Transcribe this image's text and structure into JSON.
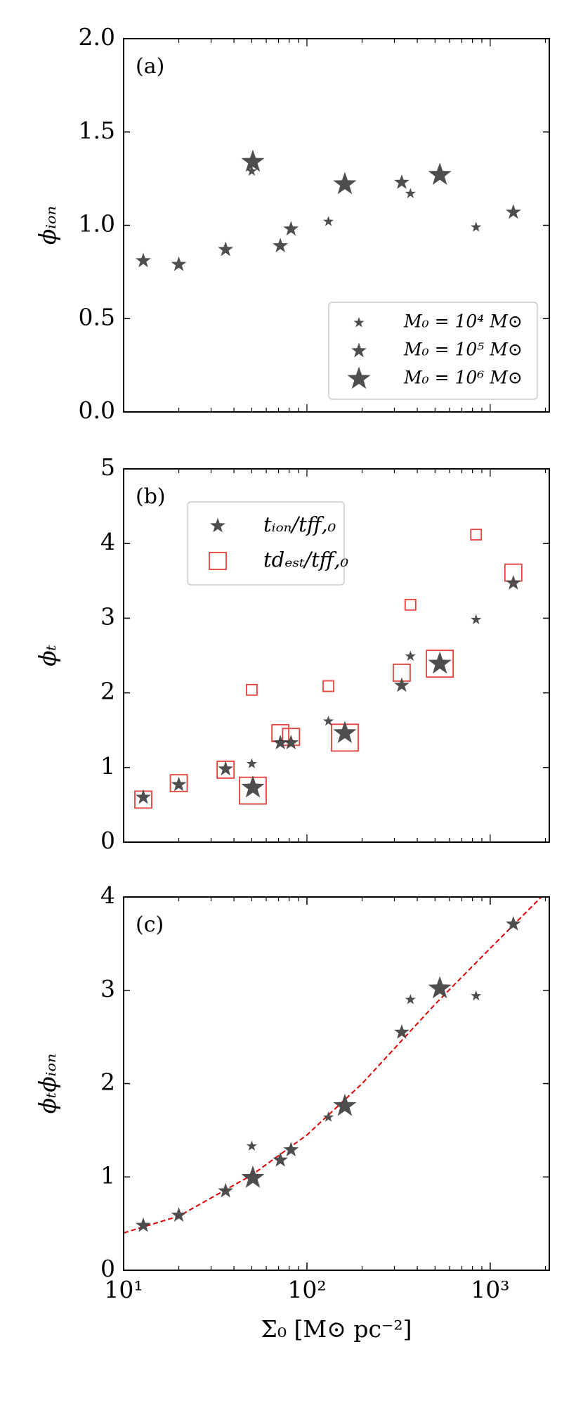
{
  "chart_data": [
    {
      "type": "scatter",
      "panel_label": "(a)",
      "ylabel": "ϕᵢₒₙ",
      "xscale": "log",
      "xlim": [
        10,
        2100
      ],
      "ylim": [
        0,
        2
      ],
      "yticks": [
        {
          "value": 0,
          "label": "0.0"
        },
        0.5,
        {
          "value": 1,
          "label": "1.0"
        },
        1.5,
        {
          "value": 2,
          "label": "2.0"
        }
      ],
      "legend": "lower right",
      "series": [
        {
          "name": "M₀ = 10⁴ M⊙",
          "marker": "star",
          "color": "#444444",
          "size": 4,
          "x": [
            50,
            131,
            367,
            837
          ],
          "values": [
            1.29,
            1.02,
            1.17,
            0.99
          ]
        },
        {
          "name": "M₀ = 10⁵ M⊙",
          "marker": "star",
          "color": "#444444",
          "size": 5,
          "x": [
            12.8,
            20,
            36,
            71.6,
            81.9,
            329,
            1337
          ],
          "values": [
            0.81,
            0.79,
            0.87,
            0.89,
            0.98,
            1.23,
            1.07
          ]
        },
        {
          "name": "M₀ = 10⁶ M⊙",
          "marker": "star",
          "color": "#444444",
          "size": 6,
          "x": [
            50.7,
            161,
            531
          ],
          "values": [
            1.34,
            1.22,
            1.27
          ]
        }
      ]
    },
    {
      "type": "scatter",
      "panel_label": "(b)",
      "ylabel": "ϕₜ",
      "xscale": "log",
      "xlim": [
        10,
        2100
      ],
      "ylim": [
        0,
        5
      ],
      "yticks": [
        0,
        1,
        2,
        3,
        4,
        5
      ],
      "legend": "upper left",
      "series": [
        {
          "name": "tᵢₒₙ/tff,₀",
          "marker": "star",
          "color": "#444444",
          "x": [
            12.8,
            20,
            36,
            50,
            50.7,
            71.6,
            81.9,
            131,
            161,
            329,
            367,
            531,
            837,
            1337
          ],
          "sizes": [
            5,
            5,
            5,
            4,
            6,
            5,
            5,
            4,
            6,
            5,
            4,
            6,
            4,
            5
          ],
          "values": [
            0.6,
            0.77,
            0.98,
            1.05,
            0.73,
            1.33,
            1.33,
            1.62,
            1.46,
            2.1,
            2.49,
            2.39,
            2.98,
            3.47
          ]
        },
        {
          "name": "tdₑₛₜ/tff,₀",
          "marker": "square",
          "color": "#e8403a",
          "x": [
            12.8,
            20,
            36,
            50,
            50.7,
            71.6,
            81.9,
            131,
            161,
            329,
            367,
            531,
            837,
            1337
          ],
          "sizes": [
            5,
            5,
            5,
            4,
            6,
            5,
            5,
            4,
            6,
            5,
            4,
            6,
            4,
            5
          ],
          "values": [
            0.57,
            0.79,
            0.97,
            2.04,
            0.69,
            1.46,
            1.41,
            2.09,
            1.4,
            2.27,
            3.18,
            2.39,
            4.12,
            3.61
          ]
        }
      ]
    },
    {
      "type": "scatter",
      "panel_label": "(c)",
      "ylabel": "ϕₜϕᵢₒₙ",
      "xlabel": "Σ₀ [M⊙ pc⁻²]",
      "xscale": "log",
      "xlim": [
        10,
        2100
      ],
      "xticks": [
        {
          "value": 10,
          "label": "10¹"
        },
        {
          "value": 100,
          "label": "10²"
        },
        {
          "value": 1000,
          "label": "10³"
        }
      ],
      "ylim": [
        0,
        4
      ],
      "yticks": [
        0,
        1,
        2,
        3,
        4
      ],
      "series": [
        {
          "marker": "line",
          "color": "#e00000",
          "style": "dashed",
          "x": [
            10,
            20,
            50,
            100,
            200,
            500,
            1000,
            1900
          ],
          "values": [
            0.4,
            0.58,
            1.02,
            1.45,
            2.0,
            2.85,
            3.45,
            4.0
          ]
        },
        {
          "marker": "star",
          "color": "#444444",
          "x": [
            12.8,
            20,
            36,
            50,
            50.7,
            71.6,
            81.9,
            131,
            161,
            329,
            367,
            531,
            837,
            1337
          ],
          "sizes": [
            5,
            5,
            5,
            4,
            6,
            5,
            5,
            4,
            6,
            5,
            4,
            6,
            4,
            5
          ],
          "values": [
            0.48,
            0.59,
            0.85,
            1.33,
            0.99,
            1.18,
            1.29,
            1.64,
            1.76,
            2.55,
            2.9,
            3.02,
            2.94,
            3.71
          ]
        }
      ]
    }
  ]
}
